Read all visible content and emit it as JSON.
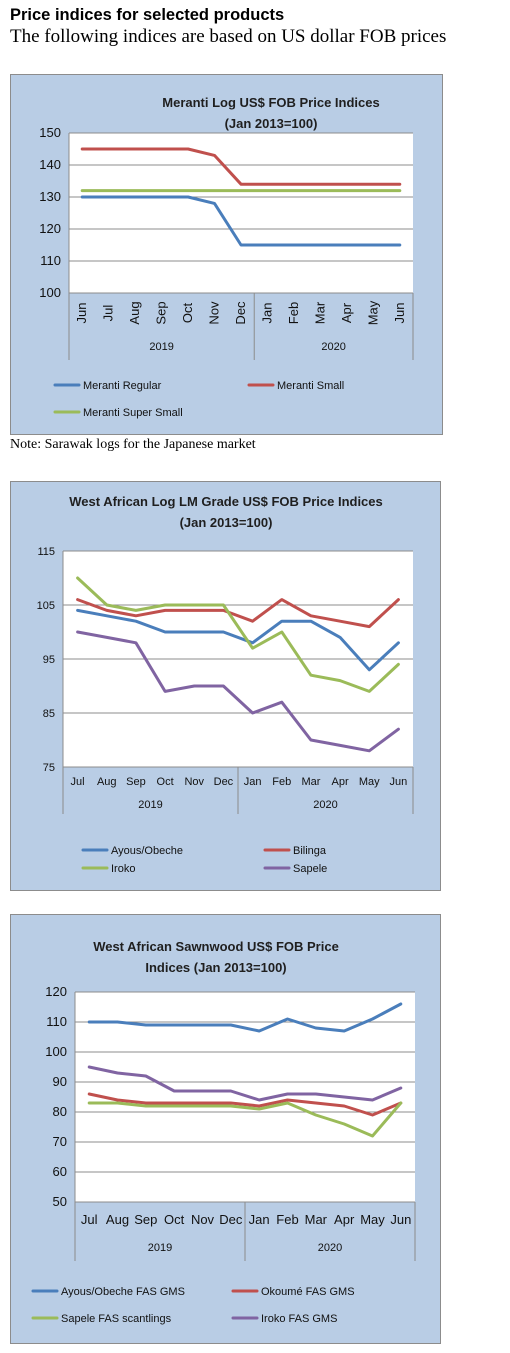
{
  "page": {
    "heading": "Price indices for selected products",
    "subheading": "The following indices are based on US dollar FOB prices",
    "note": "Note: Sarawak logs for the Japanese market"
  },
  "chart_data": [
    {
      "type": "line",
      "title_lines": [
        "Meranti Log US$ FOB Price Indices",
        "(Jan 2013=100)"
      ],
      "categories": [
        "Jun",
        "Jul",
        "Aug",
        "Sep",
        "Oct",
        "Nov",
        "Dec",
        "Jan",
        "Feb",
        "Mar",
        "Apr",
        "May",
        "Jun"
      ],
      "year_groups": [
        {
          "label": "2019",
          "span": 7
        },
        {
          "label": "2020",
          "span": 6
        }
      ],
      "ylim": [
        100,
        150
      ],
      "yticks": [
        100,
        110,
        120,
        130,
        140,
        150
      ],
      "grid": true,
      "legend_position": "bottom",
      "series": [
        {
          "name": "Meranti Regular",
          "color": "#4a7ebb",
          "values": [
            130,
            130,
            130,
            130,
            130,
            128,
            115,
            115,
            115,
            115,
            115,
            115,
            115
          ]
        },
        {
          "name": "Meranti Small",
          "color": "#c0504d",
          "values": [
            145,
            145,
            145,
            145,
            145,
            143,
            134,
            134,
            134,
            134,
            134,
            134,
            134
          ]
        },
        {
          "name": "Meranti Super Small",
          "color": "#9bbb59",
          "values": [
            132,
            132,
            132,
            132,
            132,
            132,
            132,
            132,
            132,
            132,
            132,
            132,
            132
          ]
        }
      ]
    },
    {
      "type": "line",
      "title_lines": [
        "West African Log LM Grade US$ FOB Price Indices",
        "(Jan 2013=100)"
      ],
      "categories": [
        "Jul",
        "Aug",
        "Sep",
        "Oct",
        "Nov",
        "Dec",
        "Jan",
        "Feb",
        "Mar",
        "Apr",
        "May",
        "Jun"
      ],
      "year_groups": [
        {
          "label": "2019",
          "span": 6
        },
        {
          "label": "2020",
          "span": 6
        }
      ],
      "ylim": [
        75,
        115
      ],
      "yticks": [
        75,
        85,
        95,
        105,
        115
      ],
      "grid": true,
      "legend_position": "bottom",
      "series": [
        {
          "name": "Ayous/Obeche",
          "color": "#4a7ebb",
          "values": [
            104,
            103,
            102,
            100,
            100,
            100,
            98,
            102,
            102,
            99,
            93,
            98
          ]
        },
        {
          "name": "Bilinga",
          "color": "#c0504d",
          "values": [
            106,
            104,
            103,
            104,
            104,
            104,
            102,
            106,
            103,
            102,
            101,
            106
          ]
        },
        {
          "name": "Iroko",
          "color": "#9bbb59",
          "values": [
            110,
            105,
            104,
            105,
            105,
            105,
            97,
            100,
            92,
            91,
            89,
            94
          ]
        },
        {
          "name": "Sapele",
          "color": "#8064a2",
          "values": [
            100,
            99,
            98,
            89,
            90,
            90,
            85,
            87,
            80,
            79,
            78,
            82
          ]
        }
      ]
    },
    {
      "type": "line",
      "title_lines": [
        "West African Sawnwood US$ FOB Price",
        "Indices (Jan 2013=100)"
      ],
      "categories": [
        "Jul",
        "Aug",
        "Sep",
        "Oct",
        "Nov",
        "Dec",
        "Jan",
        "Feb",
        "Mar",
        "Apr",
        "May",
        "Jun"
      ],
      "year_groups": [
        {
          "label": "2019",
          "span": 6
        },
        {
          "label": "2020",
          "span": 6
        }
      ],
      "ylim": [
        50,
        120
      ],
      "yticks": [
        50,
        60,
        70,
        80,
        90,
        100,
        110,
        120
      ],
      "grid": true,
      "legend_position": "bottom",
      "series": [
        {
          "name": "Ayous/Obeche FAS GMS",
          "color": "#4a7ebb",
          "values": [
            110,
            110,
            109,
            109,
            109,
            109,
            107,
            111,
            108,
            107,
            111,
            116
          ]
        },
        {
          "name": "Okoumé FAS GMS",
          "color": "#c0504d",
          "values": [
            86,
            84,
            83,
            83,
            83,
            83,
            82,
            84,
            83,
            82,
            79,
            83
          ]
        },
        {
          "name": "Sapele FAS scantlings",
          "color": "#9bbb59",
          "values": [
            83,
            83,
            82,
            82,
            82,
            82,
            81,
            83,
            79,
            76,
            72,
            83
          ]
        },
        {
          "name": "Iroko FAS GMS",
          "color": "#8064a2",
          "values": [
            95,
            93,
            92,
            87,
            87,
            87,
            84,
            86,
            86,
            85,
            84,
            88
          ]
        }
      ]
    }
  ]
}
